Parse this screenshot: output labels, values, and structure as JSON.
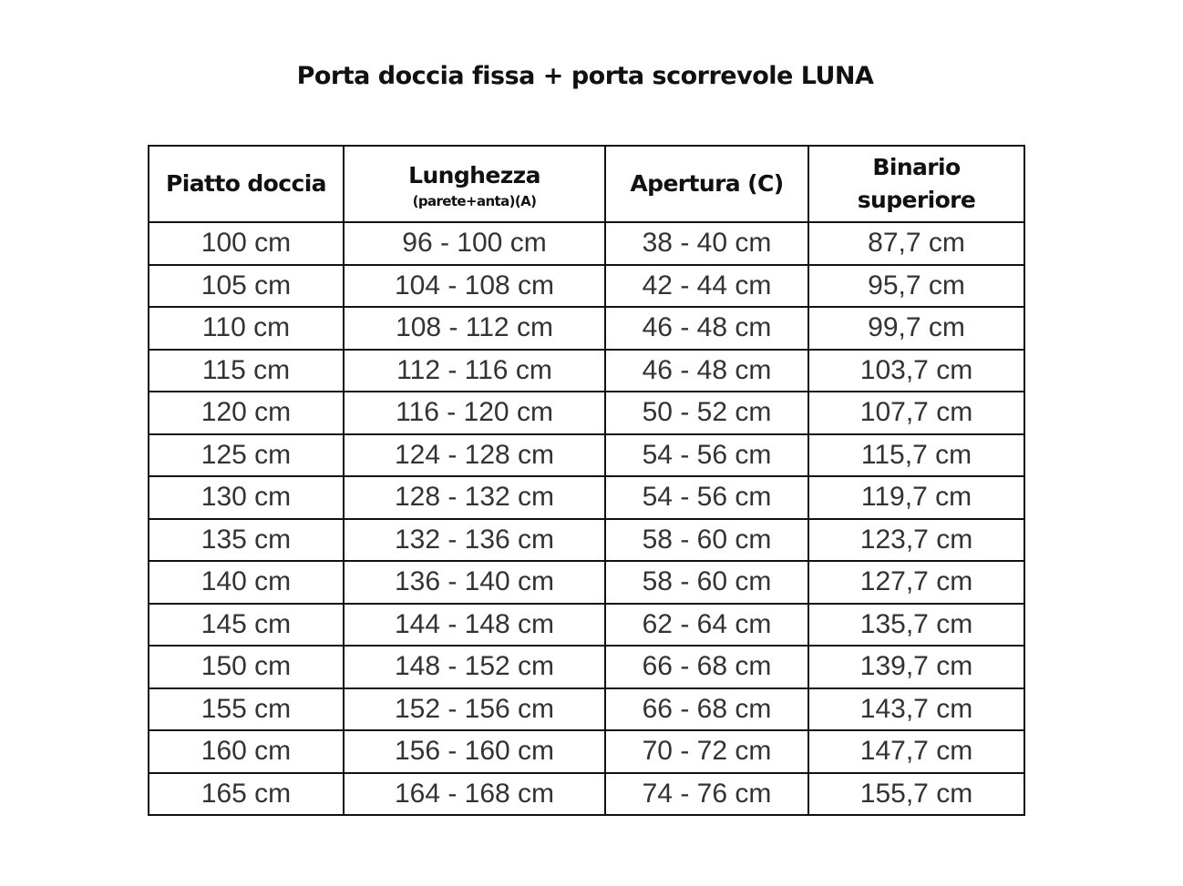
{
  "title": "Porta doccia fissa + porta scorrevole LUNA",
  "headers": [
    {
      "main": "Piatto doccia",
      "sub": ""
    },
    {
      "main": "Lunghezza",
      "sub": "(parete+anta)(A)"
    },
    {
      "main": "Apertura (C)",
      "sub": ""
    },
    {
      "main": "Binario superiore",
      "sub": ""
    }
  ],
  "rows": [
    [
      "100 cm",
      "96 - 100 cm",
      "38 - 40 cm",
      "87,7 cm"
    ],
    [
      "105 cm",
      "104 - 108 cm",
      "42 - 44 cm",
      "95,7 cm"
    ],
    [
      "110 cm",
      "108 - 112 cm",
      "46 - 48 cm",
      "99,7 cm"
    ],
    [
      "115 cm",
      "112 - 116 cm",
      "46 - 48 cm",
      "103,7 cm"
    ],
    [
      "120 cm",
      "116 - 120 cm",
      "50 - 52 cm",
      "107,7 cm"
    ],
    [
      "125 cm",
      "124 - 128 cm",
      "54 - 56 cm",
      "115,7 cm"
    ],
    [
      "130 cm",
      "128 - 132 cm",
      "54 - 56 cm",
      "119,7 cm"
    ],
    [
      "135 cm",
      "132 - 136 cm",
      "58 - 60 cm",
      "123,7 cm"
    ],
    [
      "140 cm",
      "136 - 140 cm",
      "58 - 60 cm",
      "127,7 cm"
    ],
    [
      "145 cm",
      "144 - 148 cm",
      "62 - 64 cm",
      "135,7 cm"
    ],
    [
      "150 cm",
      "148 - 152 cm",
      "66 - 68 cm",
      "139,7 cm"
    ],
    [
      "155 cm",
      "152 - 156 cm",
      "66 - 68 cm",
      "143,7 cm"
    ],
    [
      "160 cm",
      "156 - 160 cm",
      "70 - 72 cm",
      "147,7 cm"
    ],
    [
      "165 cm",
      "164 - 168 cm",
      "74 - 76 cm",
      "155,7 cm"
    ]
  ]
}
